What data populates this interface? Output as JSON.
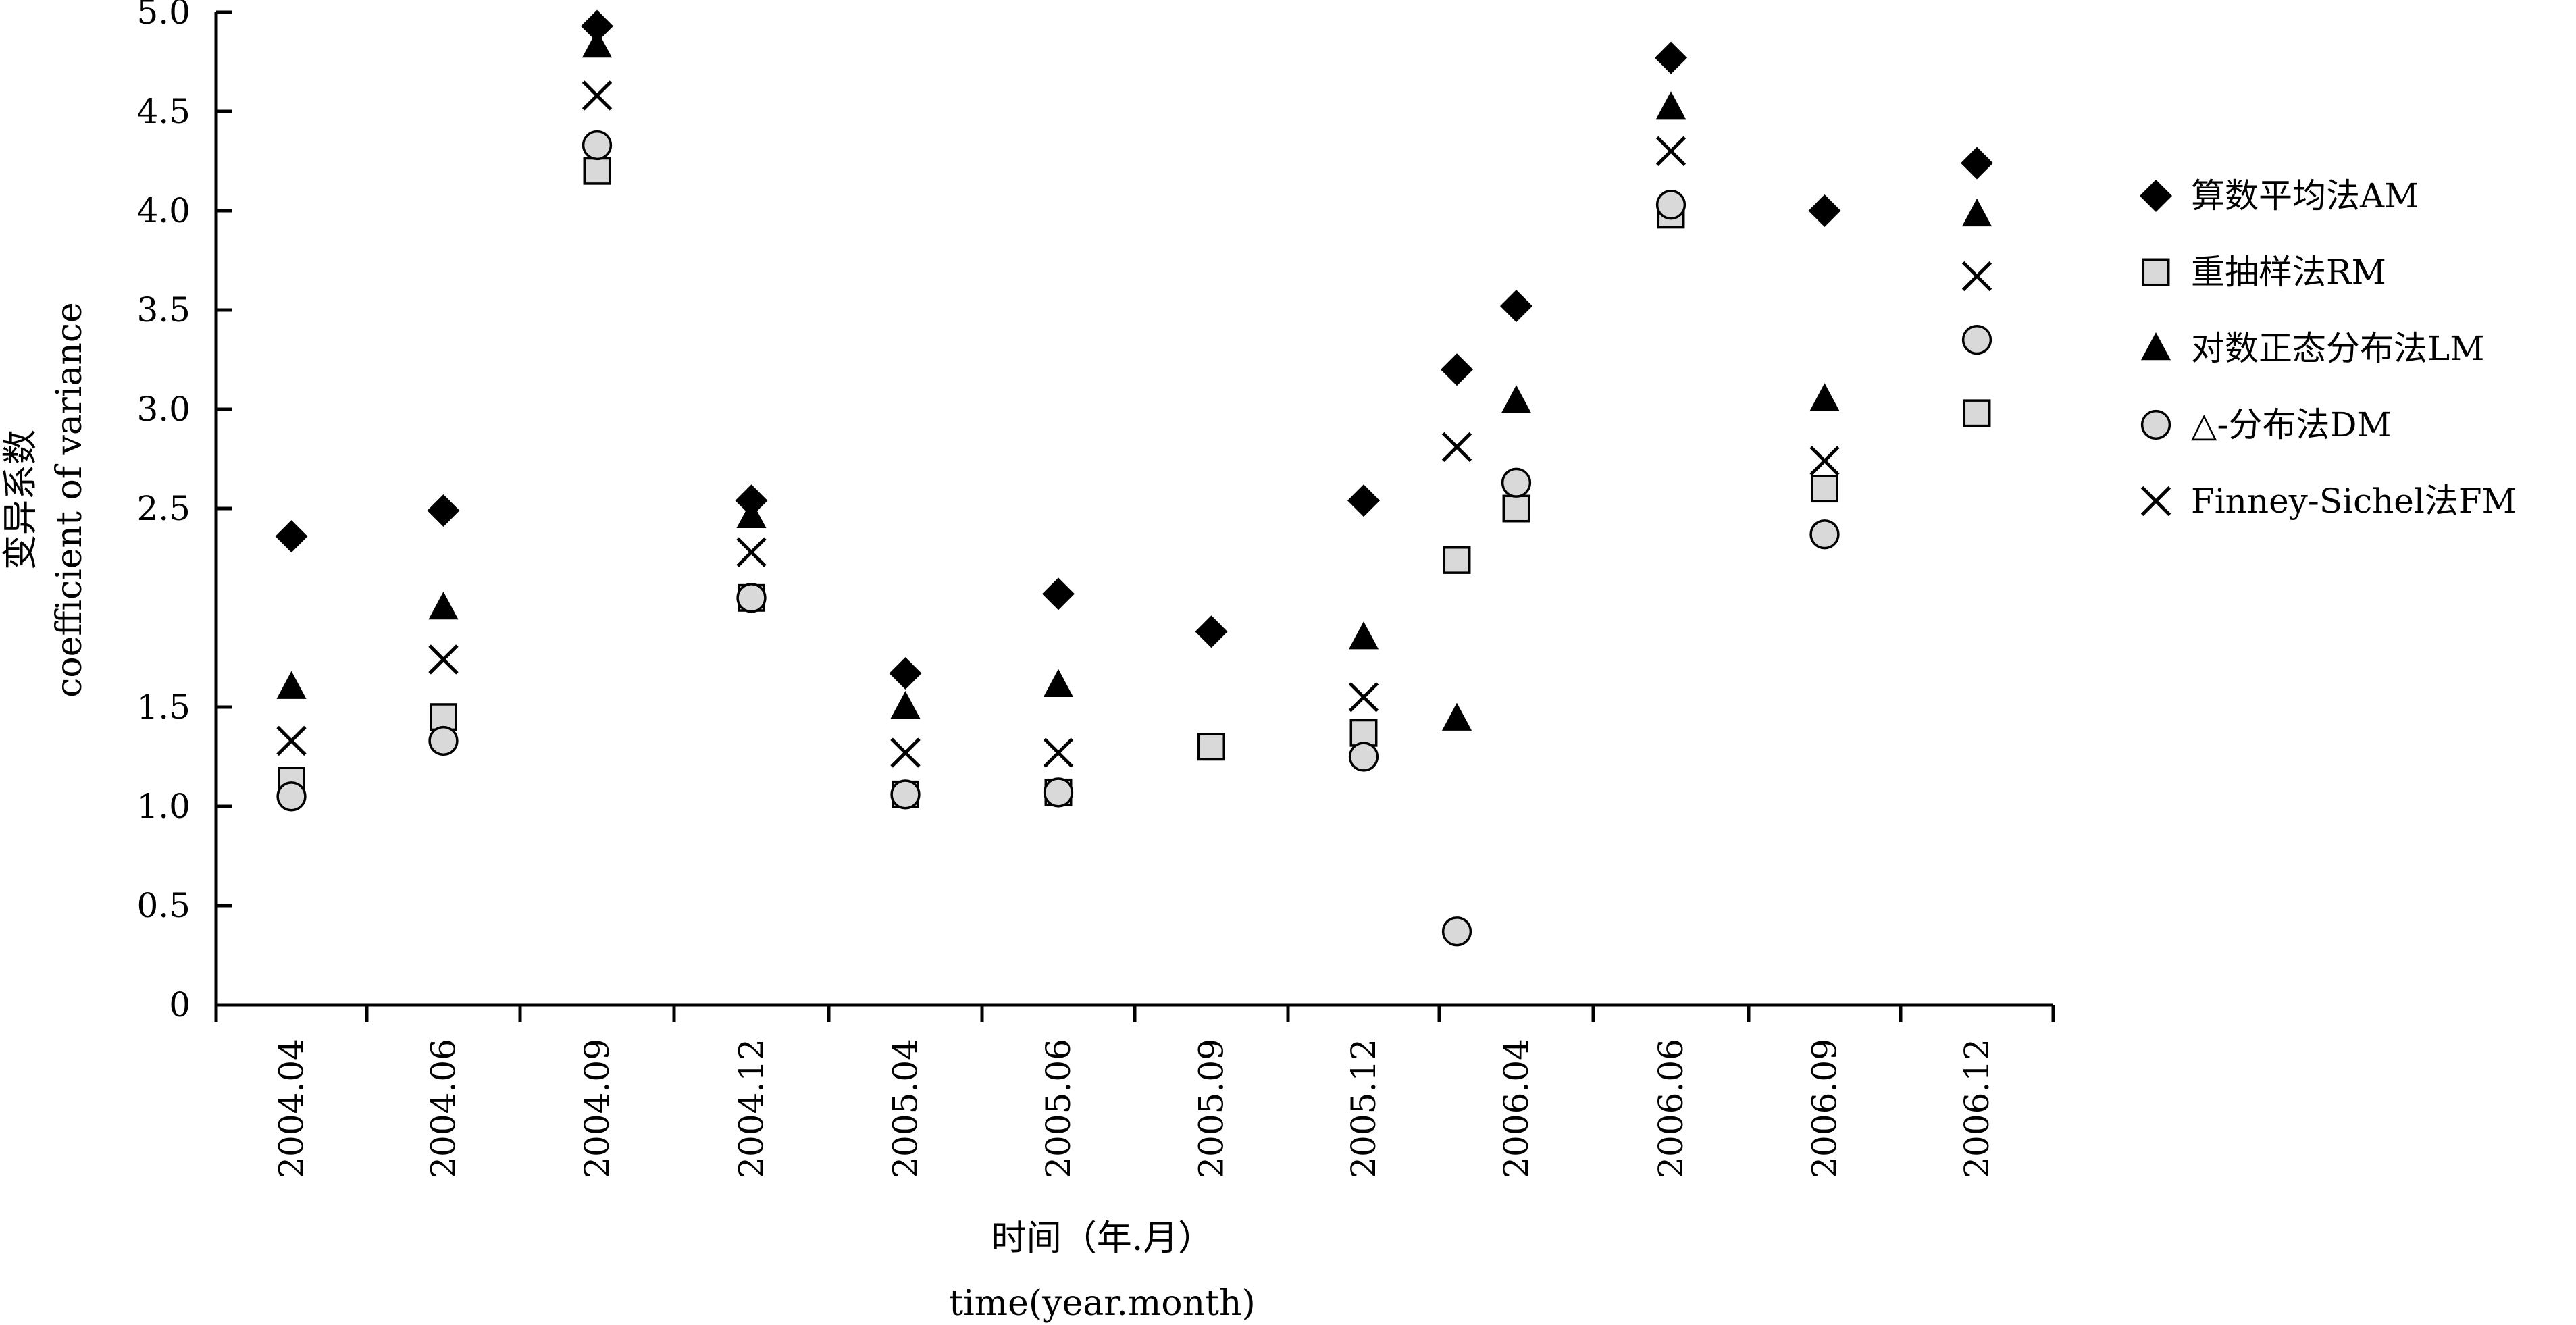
{
  "chart_data": {
    "type": "scatter",
    "title": "",
    "xlabel": "时间（年.月）",
    "xlabel_en": "time(year.month)",
    "ylabel": "变异系数",
    "ylabel_en": "coefficient of variance",
    "ylim": [
      0,
      5.0
    ],
    "y_ticks": [
      "0",
      "0.5",
      "1.0",
      "1.5",
      "2.5",
      "3.0",
      "3.5",
      "4.0",
      "4.5",
      "5.0"
    ],
    "categories": [
      "2004.04",
      "2004.06",
      "2004.09",
      "2004.12",
      "2005.04",
      "2005.06",
      "2005.09",
      "2005.12",
      "2006.04",
      "2006.06",
      "2006.09",
      "2006.12"
    ],
    "legend_position": "right",
    "series": [
      {
        "name": "算数平均法AM",
        "marker": "diamond",
        "color": "#000000",
        "points": [
          [
            "2004.04",
            2.36
          ],
          [
            "2004.06",
            2.49
          ],
          [
            "2004.09",
            4.93
          ],
          [
            "2004.12",
            2.54
          ],
          [
            "2005.04",
            1.67
          ],
          [
            "2005.06",
            2.07
          ],
          [
            "2005.09",
            1.88
          ],
          [
            "2005.12",
            2.54
          ],
          [
            "2006.04",
            3.2
          ],
          [
            "2006.04",
            3.52
          ],
          [
            "2006.06",
            4.77
          ],
          [
            "2006.09",
            4.0
          ],
          [
            "2006.12",
            4.24
          ]
        ]
      },
      {
        "name": "重抽样法RM",
        "marker": "square",
        "color": "#d9d9d9",
        "points": [
          [
            "2004.04",
            1.13
          ],
          [
            "2004.06",
            1.45
          ],
          [
            "2004.09",
            4.2
          ],
          [
            "2004.12",
            2.05
          ],
          [
            "2005.04",
            1.06
          ],
          [
            "2005.06",
            1.07
          ],
          [
            "2005.09",
            1.3
          ],
          [
            "2005.12",
            1.37
          ],
          [
            "2006.04",
            2.24
          ],
          [
            "2006.04",
            2.5
          ],
          [
            "2006.06",
            3.98
          ],
          [
            "2006.09",
            2.6
          ],
          [
            "2006.12",
            2.98
          ]
        ]
      },
      {
        "name": "对数正态分布法LM",
        "marker": "triangle",
        "color": "#000000",
        "points": [
          [
            "2004.04",
            1.6
          ],
          [
            "2004.06",
            2.0
          ],
          [
            "2004.09",
            4.83
          ],
          [
            "2004.12",
            2.46
          ],
          [
            "2005.04",
            1.5
          ],
          [
            "2005.06",
            1.61
          ],
          [
            "2005.12",
            1.85
          ],
          [
            "2006.04",
            1.44
          ],
          [
            "2006.04",
            3.04
          ],
          [
            "2006.06",
            4.52
          ],
          [
            "2006.09",
            3.05
          ],
          [
            "2006.12",
            3.98
          ]
        ]
      },
      {
        "name": "△-分布法DM",
        "marker": "circle",
        "color": "#d9d9d9",
        "points": [
          [
            "2004.04",
            1.05
          ],
          [
            "2004.06",
            1.33
          ],
          [
            "2004.09",
            4.33
          ],
          [
            "2004.12",
            2.05
          ],
          [
            "2005.04",
            1.06
          ],
          [
            "2005.06",
            1.07
          ],
          [
            "2005.12",
            1.25
          ],
          [
            "2006.04",
            0.37
          ],
          [
            "2006.04",
            2.63
          ],
          [
            "2006.06",
            4.03
          ],
          [
            "2006.09",
            2.37
          ],
          [
            "2006.12",
            3.35
          ]
        ]
      },
      {
        "name": "Finney-Sichel法FM",
        "marker": "x",
        "color": "#000000",
        "points": [
          [
            "2004.04",
            1.33
          ],
          [
            "2004.06",
            1.74
          ],
          [
            "2004.09",
            4.58
          ],
          [
            "2004.12",
            2.28
          ],
          [
            "2005.04",
            1.27
          ],
          [
            "2005.06",
            1.27
          ],
          [
            "2005.12",
            1.55
          ],
          [
            "2006.04",
            2.81
          ],
          [
            "2006.06",
            4.3
          ],
          [
            "2006.09",
            2.74
          ],
          [
            "2006.12",
            3.67
          ]
        ]
      }
    ]
  }
}
